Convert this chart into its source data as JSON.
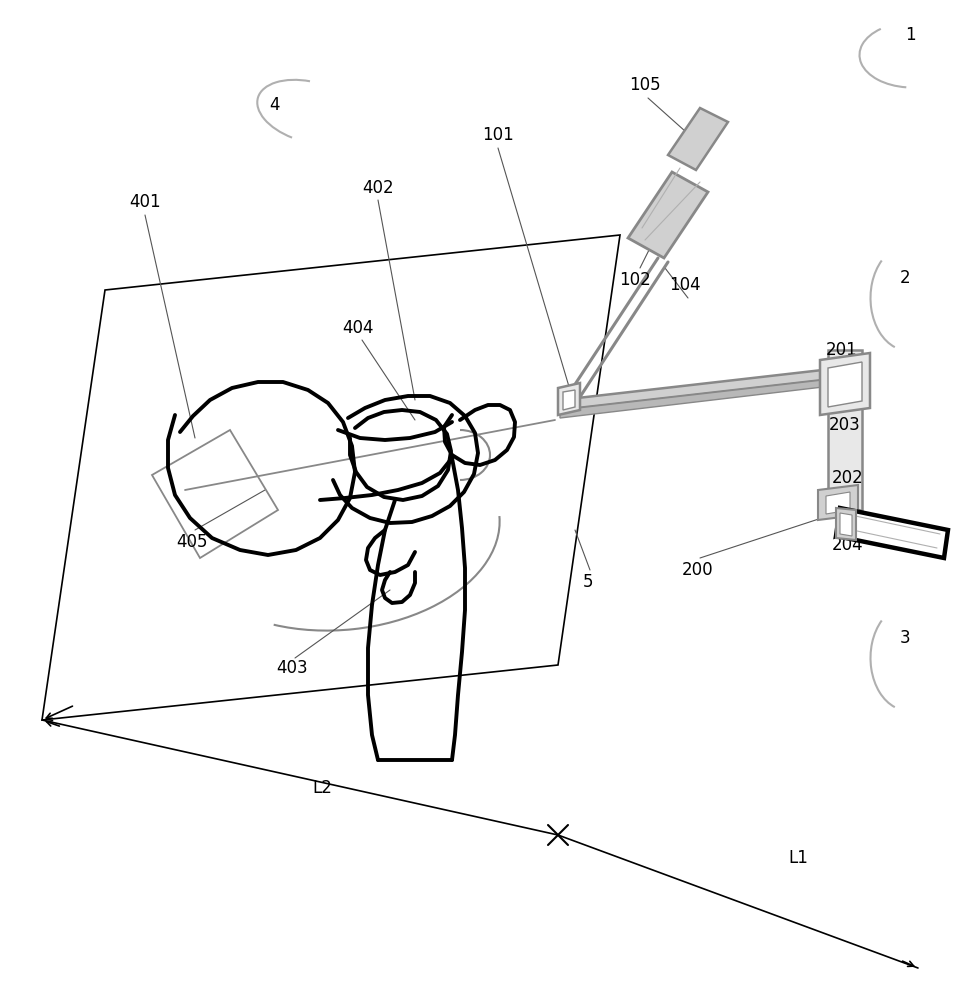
{
  "bg": "#ffffff",
  "black": "#000000",
  "gray": "#888888",
  "lgray": "#b0b0b0",
  "dgray": "#555555",
  "fill_gray": "#d0d0d0",
  "fill_lgray": "#e8e8e8"
}
